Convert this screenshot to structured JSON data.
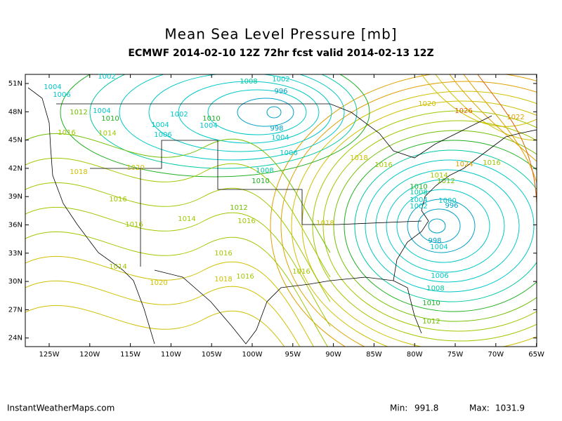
{
  "header": {
    "title": "Mean Sea Level Pressure [mb]",
    "subtitle": "ECMWF 2014-02-10 12Z 72hr fcst valid 2014-02-13 12Z"
  },
  "map": {
    "lat_labels": [
      "51N",
      "48N",
      "45N",
      "42N",
      "39N",
      "36N",
      "33N",
      "30N",
      "27N",
      "24N"
    ],
    "lon_labels": [
      "125W",
      "120W",
      "115W",
      "110W",
      "105W",
      "100W",
      "95W",
      "90W",
      "85W",
      "80W",
      "75W",
      "70W",
      "65W"
    ],
    "contour_labels": [
      "1004",
      "1002",
      "1006",
      "1012",
      "1004",
      "1010",
      "1016",
      "1014",
      "1002",
      "1004",
      "1006",
      "1004",
      "1010",
      "1008",
      "1002",
      "996",
      "998",
      "1004",
      "1006",
      "1008",
      "1010",
      "1012",
      "1016",
      "1020",
      "1018",
      "1016",
      "1016",
      "1014",
      "1016",
      "1018",
      "1016",
      "1014",
      "1020",
      "1016",
      "1018",
      "1016",
      "1018",
      "1020",
      "1026",
      "1022",
      "1024",
      "1016",
      "1014",
      "1012",
      "1010",
      "1008",
      "1004",
      "1002",
      "1000",
      "996",
      "998",
      "1004",
      "1006",
      "1008",
      "1010",
      "1012"
    ]
  },
  "footer": {
    "credit": "InstantWeatherMaps.com",
    "min_label": "Min:",
    "min_value": "991.8",
    "max_label": "Max:",
    "max_value": "1031.9"
  }
}
